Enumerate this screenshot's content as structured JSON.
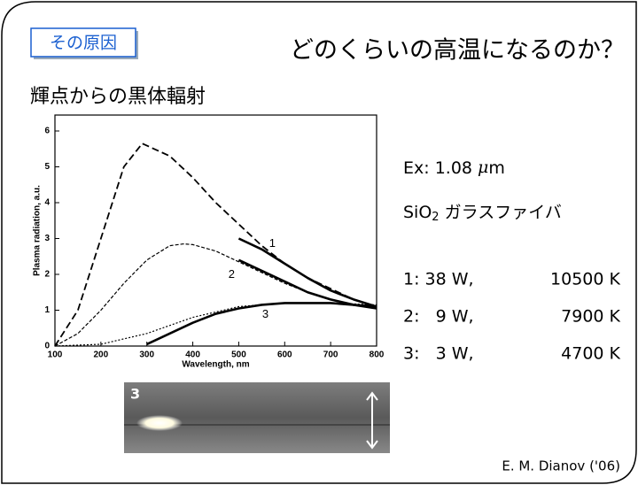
{
  "tag": "その原因",
  "title": "どのくらいの高温になるのか？",
  "subtitle": "輝点からの黒体輻射",
  "excitation": [
    "Ex: 1.08 ",
    "μ",
    "m"
  ],
  "fiber": [
    "SiO",
    "2",
    " ガラスファイバ"
  ],
  "rows": [
    [
      "1: 38 W,",
      "10500 K"
    ],
    [
      "2:   9 W,",
      "7900 K"
    ],
    [
      "3:   3 W,",
      "4700 K"
    ]
  ],
  "image_label": "3",
  "credit": "E. M. Dianov ('06)",
  "chart_data": {
    "type": "line",
    "xlabel": "Wavelength, nm",
    "ylabel": "Plasma radiation, a.u.",
    "xlim": [
      100,
      800
    ],
    "ylim": [
      0,
      6
    ],
    "xticks": [
      100,
      200,
      300,
      400,
      500,
      600,
      700,
      800
    ],
    "yticks": [
      0,
      1,
      2,
      3,
      4,
      5,
      6
    ],
    "grid": false,
    "series": [
      {
        "label": "1",
        "color": "#000000",
        "style": "solid",
        "x": [
          500,
          550,
          600,
          650,
          700,
          750,
          800
        ],
        "values": [
          3.0,
          2.7,
          2.3,
          1.9,
          1.55,
          1.3,
          1.1
        ]
      },
      {
        "color": "#000000",
        "style": "dashed",
        "x": [
          100,
          150,
          200,
          250,
          290,
          350,
          400,
          450,
          500,
          550,
          600,
          650,
          700,
          750,
          800
        ],
        "values": [
          0,
          1.0,
          3.0,
          5.0,
          5.65,
          5.3,
          4.7,
          4.0,
          3.4,
          2.8,
          2.3,
          1.9,
          1.6,
          1.3,
          1.1
        ]
      },
      {
        "label": "2",
        "color": "#000000",
        "style": "solid",
        "x": [
          500,
          550,
          600,
          650,
          700,
          750,
          800
        ],
        "values": [
          2.4,
          2.1,
          1.8,
          1.5,
          1.3,
          1.15,
          1.05
        ]
      },
      {
        "color": "#000000",
        "style": "short-dashed",
        "x": [
          100,
          150,
          200,
          250,
          300,
          350,
          380,
          400,
          450,
          500,
          550,
          600,
          650,
          700,
          750,
          800
        ],
        "values": [
          0,
          0.35,
          1.0,
          1.75,
          2.4,
          2.8,
          2.85,
          2.83,
          2.65,
          2.35,
          2.05,
          1.75,
          1.5,
          1.3,
          1.15,
          1.05
        ]
      },
      {
        "label": "3",
        "color": "#000000",
        "style": "solid",
        "x": [
          300,
          350,
          400,
          450,
          500,
          550,
          600,
          700,
          800
        ],
        "values": [
          0.05,
          0.35,
          0.65,
          0.9,
          1.05,
          1.15,
          1.2,
          1.2,
          1.1
        ]
      },
      {
        "color": "#000000",
        "style": "dotted",
        "x": [
          100,
          200,
          300,
          400,
          500,
          600,
          700,
          800
        ],
        "values": [
          0,
          0.05,
          0.35,
          0.8,
          1.1,
          1.2,
          1.2,
          1.15
        ]
      }
    ]
  }
}
